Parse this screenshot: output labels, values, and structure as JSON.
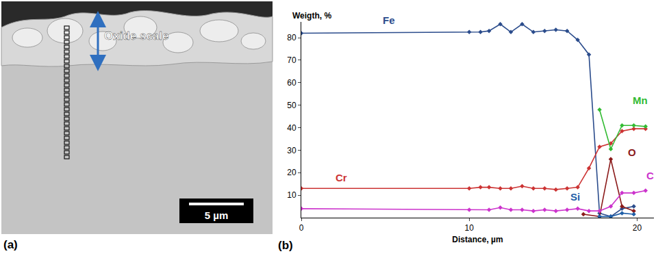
{
  "image_panel": {
    "label": "(a)",
    "annotation": "Oxide scale",
    "scale_bar": "5 µm"
  },
  "chart_data": {
    "type": "line",
    "panel_label": "(b)",
    "y_label": "Weigth, %",
    "x_label": "Distance, µm",
    "xlim": [
      0,
      21
    ],
    "xticks": [
      0,
      10,
      20
    ],
    "ylim": [
      0,
      87
    ],
    "yticks": [
      10,
      20,
      30,
      40,
      50,
      60,
      70,
      80
    ],
    "grid": false,
    "marker": "diamond",
    "series": [
      {
        "name": "Fe",
        "color": "#2b4c8c",
        "x": [
          0,
          10.0,
          10.67,
          11.18,
          11.85,
          12.48,
          13.15,
          13.82,
          14.49,
          15.16,
          15.83,
          16.46,
          17.13,
          17.76,
          18.43,
          19.1,
          19.8
        ],
        "values": [
          82,
          82.5,
          82.5,
          83,
          86,
          82.5,
          86,
          82.5,
          83,
          83.5,
          83,
          79,
          72.5,
          2,
          0.5,
          4,
          5
        ]
      },
      {
        "name": "Cr",
        "color": "#cc3333",
        "x": [
          0,
          10.0,
          10.67,
          11.18,
          11.85,
          12.48,
          13.15,
          13.82,
          14.49,
          15.16,
          15.83,
          16.46,
          17.13,
          17.76,
          18.43,
          19.1,
          19.8,
          20.5
        ],
        "values": [
          13,
          13,
          13.5,
          13.5,
          13,
          13,
          14,
          13,
          13,
          12.5,
          13,
          13.5,
          22,
          31.5,
          33,
          38.5,
          39.5,
          39.5
        ]
      },
      {
        "name": "Mn",
        "color": "#33bb33",
        "x": [
          17.76,
          18.43,
          19.1,
          19.8,
          20.5
        ],
        "values": [
          48,
          30.5,
          41,
          41,
          40.5
        ]
      },
      {
        "name": "O",
        "color": "#8b1a1a",
        "x": [
          16.8,
          17.76,
          18.43,
          19.1,
          19.8
        ],
        "values": [
          1.5,
          0.5,
          26,
          5,
          3
        ]
      },
      {
        "name": "C",
        "color": "#cc33cc",
        "x": [
          0,
          10.0,
          11.18,
          11.85,
          12.48,
          13.15,
          13.82,
          14.49,
          15.16,
          15.83,
          16.46,
          17.13,
          17.76,
          18.43,
          19.1,
          19.8,
          20.5
        ],
        "values": [
          4,
          3.5,
          3.5,
          4.5,
          3.5,
          3.5,
          3,
          3.5,
          3,
          3.5,
          4,
          3,
          3,
          5,
          11,
          11,
          12
        ]
      },
      {
        "name": "Si",
        "color": "#1f5fa8",
        "x": [
          17.76,
          18.43,
          19.1,
          19.8
        ],
        "values": [
          0.5,
          0.5,
          2,
          1.5
        ]
      }
    ]
  }
}
